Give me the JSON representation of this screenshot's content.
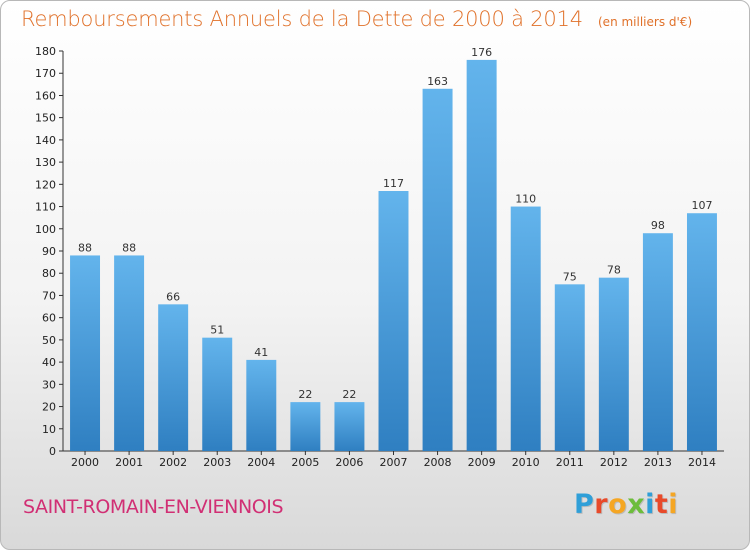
{
  "header": {
    "title": "Remboursements Annuels de la Dette de 2000 à 2014",
    "unit": "(en milliers d'€)"
  },
  "commune": "SAINT-ROMAIN-EN-VIENNOIS",
  "logo": {
    "letters": [
      "P",
      "r",
      "o",
      "x",
      "i",
      "t",
      "i"
    ],
    "colors": [
      "#2f9fd8",
      "#e84a2a",
      "#f5a623",
      "#6cbd3b",
      "#2f9fd8",
      "#e84a2a",
      "#f5a623"
    ]
  },
  "colors": {
    "bar_top": "#63b4ec",
    "bar_bottom": "#2f7fc1",
    "title": "#e0712a",
    "commune": "#d12f74"
  },
  "chart_data": {
    "type": "bar",
    "categories": [
      "2000",
      "2001",
      "2002",
      "2003",
      "2004",
      "2005",
      "2006",
      "2007",
      "2008",
      "2009",
      "2010",
      "2011",
      "2012",
      "2013",
      "2014"
    ],
    "values": [
      88,
      88,
      66,
      51,
      41,
      22,
      22,
      117,
      163,
      176,
      110,
      75,
      78,
      98,
      107
    ],
    "title": "Remboursements Annuels de la Dette de 2000 à 2014",
    "xlabel": "",
    "ylabel": "",
    "ylim": [
      0,
      180
    ],
    "yticks": [
      0,
      10,
      20,
      30,
      40,
      50,
      60,
      70,
      80,
      90,
      100,
      110,
      120,
      130,
      140,
      150,
      160,
      170,
      180
    ],
    "grid": false,
    "legend": "none"
  }
}
